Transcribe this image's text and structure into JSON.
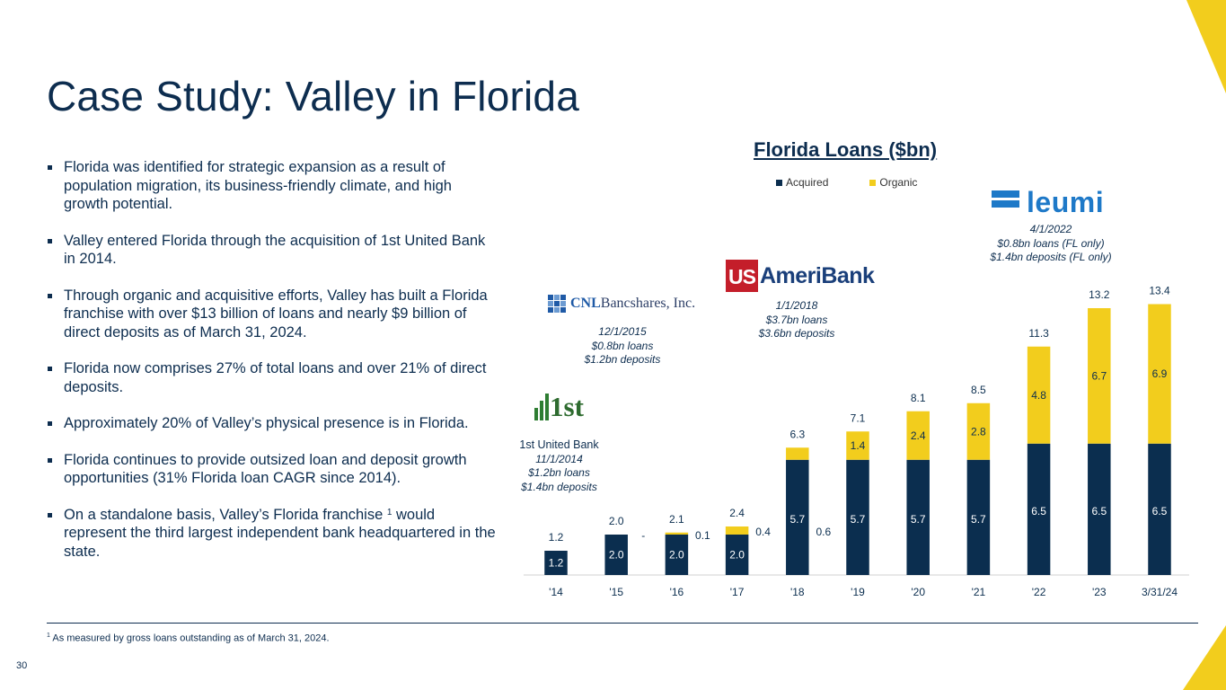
{
  "title": "Case Study: Valley in Florida",
  "bullets": [
    {
      "text": "Florida was identified for strategic expansion as a result of population migration, its business-friendly climate, and high growth potential."
    },
    {
      "text": "Valley entered Florida through the acquisition of 1st United Bank in 2014."
    },
    {
      "text": "Through organic and acquisitive efforts, Valley has built a Florida franchise with over $13 billion of loans and nearly $9 billion of direct deposits as of March 31, 2024."
    },
    {
      "text": "Florida now comprises 27% of total loans and over 21% of direct deposits."
    },
    {
      "text": "Approximately 20% of Valley’s physical presence is in Florida."
    },
    {
      "text": "Florida continues to provide outsized loan and deposit growth opportunities (31% Florida loan CAGR since 2014)."
    },
    {
      "text_before": "On a standalone basis, Valley’s Florida franchise ",
      "sup": "1",
      "text_after": " would represent the third largest independent bank headquartered in the state."
    }
  ],
  "footnote": {
    "sup": "1",
    "text": " As measured by gross loans outstanding as of March 31, 2024."
  },
  "page_number": "30",
  "colors": {
    "navy": "#0b2e4f",
    "gold": "#f2cd1d",
    "title": "#0d2d4f"
  },
  "annotations": {
    "first_united": {
      "logo": "1st",
      "bank": "1st United Bank",
      "date": "11/1/2014",
      "loans": "$1.2bn loans",
      "deposits": "$1.4bn deposits"
    },
    "cnl": {
      "logo_bold": "CNL",
      "logo_rest": "Bancshares, Inc.",
      "date": "12/1/2015",
      "loans": "$0.8bn loans",
      "deposits": "$1.2bn deposits"
    },
    "usameribank": {
      "logo_box": "US",
      "logo_rest": "AmeriBank",
      "date": "1/1/2018",
      "loans": "$3.7bn loans",
      "deposits": "$3.6bn deposits"
    },
    "leumi": {
      "logo": "leumi",
      "date": "4/1/2022",
      "loans": "$0.8bn loans (FL only)",
      "deposits": "$1.4bn deposits (FL only)"
    }
  },
  "chart_data": {
    "type": "bar",
    "stacked": true,
    "title": "Florida Loans ($bn)",
    "xlabel": "",
    "ylabel": "",
    "ylim": [
      0,
      16
    ],
    "grid": false,
    "legend_position": "top",
    "categories": [
      "'14",
      "'15",
      "'16",
      "'17",
      "'18",
      "'19",
      "'20",
      "'21",
      "'22",
      "'23",
      "3/31/24"
    ],
    "series": [
      {
        "name": "Acquired",
        "color": "#0b2e4f",
        "values": [
          1.2,
          2.0,
          2.0,
          2.0,
          5.7,
          5.7,
          5.7,
          5.7,
          6.5,
          6.5,
          6.5
        ],
        "labels": [
          "1.2",
          "2.0",
          "2.0",
          "2.0",
          "5.7",
          "5.7",
          "5.7",
          "5.7",
          "6.5",
          "6.5",
          "6.5"
        ]
      },
      {
        "name": "Organic",
        "color": "#f2cd1d",
        "values": [
          0,
          0,
          0.1,
          0.4,
          0.6,
          1.4,
          2.4,
          2.8,
          4.8,
          6.7,
          6.9
        ],
        "labels": [
          "",
          "-",
          "0.1",
          "0.4",
          "0.6",
          "1.4",
          "2.4",
          "2.8",
          "4.8",
          "6.7",
          "6.9"
        ]
      }
    ],
    "totals": [
      "1.2",
      "2.0",
      "2.1",
      "2.4",
      "6.3",
      "7.1",
      "8.1",
      "8.5",
      "11.3",
      "13.2",
      "13.4"
    ]
  }
}
